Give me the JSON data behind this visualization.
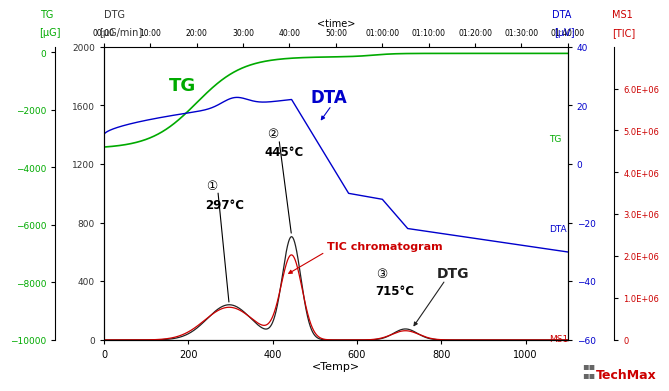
{
  "tg_color": "#00aa00",
  "dta_color": "#0000cc",
  "dtg_color": "#222222",
  "tic_color": "#cc0000",
  "x_min": 0,
  "x_max": 1100,
  "x_ticks": [
    0,
    200,
    400,
    600,
    800,
    1000
  ],
  "xlabel": "<Temp>",
  "tg_ylim": [
    -10000,
    200
  ],
  "tg_yticks": [
    0,
    -2000,
    -4000,
    -6000,
    -8000,
    -10000
  ],
  "dtg_ylim": [
    0,
    2000
  ],
  "dtg_yticks": [
    0,
    400,
    800,
    1200,
    1600,
    2000
  ],
  "dta_ylim": [
    -60,
    40
  ],
  "dta_yticks": [
    40,
    20,
    0,
    -20,
    -40,
    -60
  ],
  "ms1_ylim": [
    0,
    7000000.0
  ],
  "ms1_yticks": [
    6000000.0,
    5000000.0,
    4000000.0,
    3000000.0,
    2000000.0,
    1000000.0,
    0
  ],
  "ms1_labels": [
    "6.0E+06",
    "5.0E+06",
    "4.0E+06",
    "3.0E+06",
    "2.0E+06",
    "1.0E+06",
    "0"
  ],
  "time_ticks_labels": [
    "00:00",
    "10:00",
    "20:00",
    "30:00",
    "40:00",
    "50:00",
    "01:00:00",
    "01:10:00",
    "01:20:00",
    "01:30:00",
    "01:40:00"
  ],
  "time_axis_label": "<time>",
  "background": "#ffffff"
}
